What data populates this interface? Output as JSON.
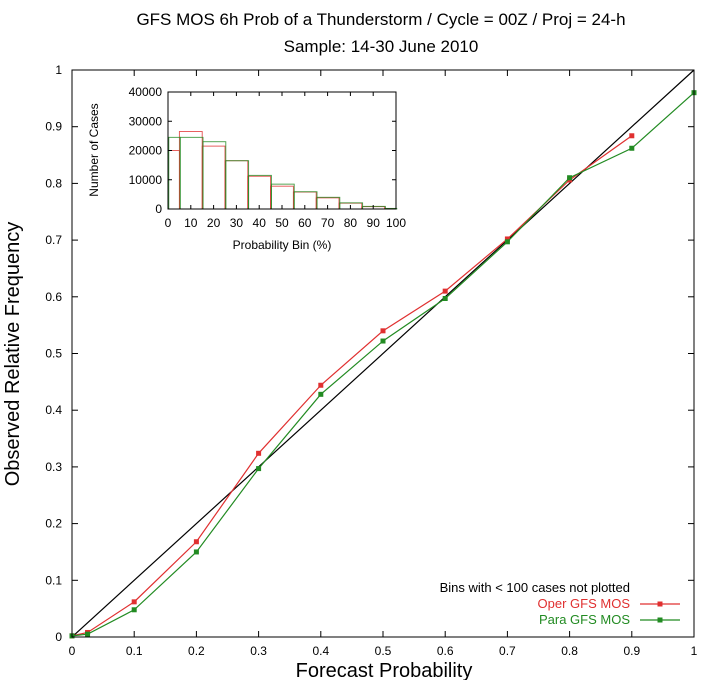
{
  "chart_data": [
    {
      "type": "line",
      "title_line1": "GFS MOS 6h Prob of a Thunderstorm / Cycle = 00Z / Proj = 24-h",
      "title_line2": "Sample: 14-30 June 2010",
      "xlabel": "Forecast Probability",
      "ylabel": "Observed Relative Frequency",
      "xlim": [
        0,
        1
      ],
      "ylim": [
        0,
        1
      ],
      "xticks": [
        "0",
        "0.1",
        "0.2",
        "0.3",
        "0.4",
        "0.5",
        "0.6",
        "0.7",
        "0.8",
        "0.9",
        "1"
      ],
      "yticks": [
        "0",
        "0.1",
        "0.2",
        "0.3",
        "0.4",
        "0.5",
        "0.6",
        "0.7",
        "0.8",
        "0.9",
        "1"
      ],
      "note": "Bins with < 100 cases not plotted",
      "legend_position": "bottom-right",
      "reference_line": {
        "x": [
          0,
          1
        ],
        "y": [
          0,
          1
        ],
        "color": "#000000"
      },
      "series": [
        {
          "name": "Oper GFS MOS",
          "color": "#e03030",
          "x": [
            0.0,
            0.025,
            0.1,
            0.2,
            0.3,
            0.4,
            0.5,
            0.6,
            0.7,
            0.8,
            0.9
          ],
          "y": [
            0.002,
            0.008,
            0.062,
            0.168,
            0.324,
            0.444,
            0.54,
            0.61,
            0.702,
            0.806,
            0.884
          ]
        },
        {
          "name": "Para GFS MOS",
          "color": "#228b22",
          "x": [
            0.0,
            0.025,
            0.1,
            0.2,
            0.3,
            0.4,
            0.5,
            0.6,
            0.7,
            0.8,
            0.9,
            1.0
          ],
          "y": [
            0.002,
            0.005,
            0.048,
            0.15,
            0.297,
            0.428,
            0.522,
            0.597,
            0.697,
            0.81,
            0.862,
            0.96
          ]
        }
      ]
    },
    {
      "type": "bar",
      "subtype": "histogram",
      "xlabel": "Probability Bin (%)",
      "ylabel": "Number of Cases",
      "xlim": [
        0,
        100
      ],
      "ylim": [
        0,
        40000
      ],
      "xticks": [
        "0",
        "10",
        "20",
        "30",
        "40",
        "50",
        "60",
        "70",
        "80",
        "90",
        "100"
      ],
      "yticks": [
        "0",
        "10000",
        "20000",
        "30000",
        "40000"
      ],
      "bins": [
        [
          0,
          5
        ],
        [
          5,
          15
        ],
        [
          15,
          25
        ],
        [
          25,
          35
        ],
        [
          35,
          45
        ],
        [
          45,
          55
        ],
        [
          55,
          65
        ],
        [
          65,
          75
        ],
        [
          75,
          85
        ],
        [
          85,
          95
        ],
        [
          95,
          100
        ]
      ],
      "series": [
        {
          "color": "#e03030",
          "values": [
            20000,
            26500,
            21500,
            16500,
            11200,
            7800,
            5800,
            3800,
            2000,
            800,
            150
          ]
        },
        {
          "color": "#228b22",
          "values": [
            24500,
            24500,
            23000,
            16500,
            11500,
            8500,
            5900,
            4000,
            2100,
            900,
            200
          ]
        }
      ]
    }
  ]
}
